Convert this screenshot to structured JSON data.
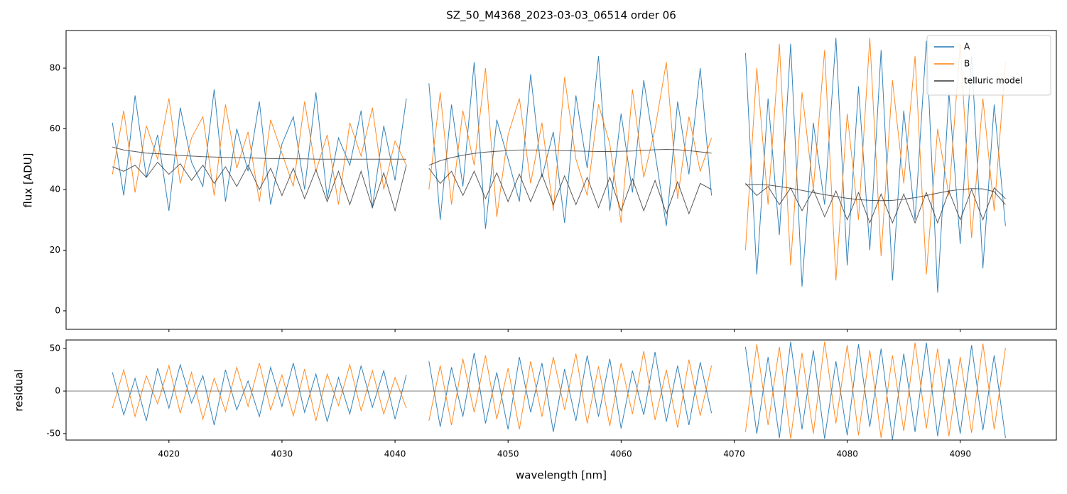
{
  "chart_data": [
    {
      "type": "line",
      "title": "SZ_50_M4368_2023-03-03_06514  order 06",
      "ylabel": "flux [ADU]",
      "xlim": [
        4010.9,
        4098.5
      ],
      "ylim": [
        -6.1,
        92.4
      ],
      "xticks": [
        4020,
        4030,
        4040,
        4050,
        4060,
        4070,
        4080,
        4090
      ],
      "show_xtick_labels": false,
      "yticks": [
        0,
        20,
        40,
        60,
        80
      ],
      "legend": "upper right",
      "x": [
        4015,
        4016,
        4017,
        4018,
        4019,
        4020,
        4021,
        4022,
        4023,
        4024,
        4025,
        4026,
        4027,
        4028,
        4029,
        4030,
        4031,
        4032,
        4033,
        4034,
        4035,
        4036,
        4037,
        4038,
        4039,
        4040,
        4041,
        4042,
        4043,
        4044,
        4045,
        4046,
        4047,
        4048,
        4049,
        4050,
        4051,
        4052,
        4053,
        4054,
        4055,
        4056,
        4057,
        4058,
        4059,
        4060,
        4061,
        4062,
        4063,
        4064,
        4065,
        4066,
        4067,
        4068,
        4069,
        4070,
        4071,
        4072,
        4073,
        4074,
        4075,
        4076,
        4077,
        4078,
        4079,
        4080,
        4081,
        4082,
        4083,
        4084,
        4085,
        4086,
        4087,
        4088,
        4089,
        4090,
        4091,
        4092,
        4093,
        4094
      ],
      "series": [
        {
          "name": "A",
          "color": "#1f77b4",
          "values": [
            62,
            38,
            71,
            44,
            58,
            33,
            67,
            49,
            41,
            73,
            36,
            60,
            46,
            69,
            35,
            55,
            64,
            40,
            72,
            37,
            57,
            48,
            66,
            34,
            61,
            43,
            70,
            null,
            75,
            30,
            68,
            41,
            82,
            27,
            63,
            50,
            36,
            78,
            44,
            59,
            29,
            71,
            47,
            84,
            33,
            65,
            39,
            76,
            52,
            28,
            69,
            45,
            80,
            38,
            null,
            null,
            85,
            12,
            70,
            25,
            88,
            8,
            62,
            35,
            90,
            15,
            74,
            20,
            86,
            10,
            66,
            30,
            89,
            6,
            72,
            22,
            84,
            14,
            68,
            28
          ]
        },
        {
          "name": "B",
          "color": "#ff7f0e",
          "values": [
            45,
            66,
            39,
            61,
            50,
            70,
            42,
            57,
            64,
            38,
            68,
            47,
            59,
            36,
            63,
            52,
            41,
            69,
            46,
            58,
            35,
            62,
            51,
            67,
            40,
            56,
            48,
            null,
            40,
            72,
            35,
            66,
            48,
            80,
            31,
            58,
            70,
            42,
            62,
            33,
            77,
            50,
            38,
            68,
            55,
            29,
            73,
            44,
            60,
            82,
            37,
            64,
            46,
            57,
            null,
            null,
            20,
            80,
            35,
            88,
            15,
            72,
            40,
            86,
            10,
            65,
            30,
            90,
            18,
            76,
            42,
            84,
            12,
            60,
            38,
            88,
            24,
            70,
            33,
            82
          ]
        },
        {
          "name": "telluric model",
          "color": "#333333",
          "values": [
            47.5,
            46,
            48,
            44,
            49,
            45,
            48.5,
            43,
            48,
            42,
            47.5,
            41,
            48,
            40,
            47,
            38,
            47,
            37,
            46.5,
            36,
            46,
            35,
            46,
            34,
            45.5,
            33,
            48,
            null,
            47,
            42,
            46,
            38,
            46,
            37,
            45.5,
            36,
            45,
            36,
            45,
            35,
            44.5,
            35,
            44,
            34,
            44,
            33,
            43.5,
            33,
            43,
            32,
            42.5,
            32,
            42,
            40,
            null,
            null,
            42,
            38,
            41,
            35,
            40.5,
            33,
            40,
            31,
            39.5,
            30,
            39,
            29,
            38.5,
            29,
            38.5,
            29,
            39,
            29,
            39.5,
            30,
            40,
            30,
            40.5,
            37
          ]
        },
        {
          "color": "#333333",
          "values": [
            54,
            53,
            52.5,
            52,
            51.8,
            51.5,
            51.2,
            51,
            50.8,
            50.7,
            50.6,
            50.5,
            50.4,
            50.3,
            50.2,
            50.2,
            50.1,
            50.1,
            50,
            50,
            50,
            50,
            50,
            50,
            50,
            50,
            50,
            null,
            48,
            49.5,
            50.5,
            51.3,
            51.9,
            52.3,
            52.6,
            52.8,
            53,
            53,
            53,
            52.9,
            52.8,
            52.7,
            52.6,
            52.5,
            52.5,
            52.6,
            52.7,
            52.9,
            53.1,
            53.2,
            53.1,
            52.8,
            52.4,
            52,
            null,
            null,
            41.5,
            41.7,
            41.5,
            41,
            40.4,
            39.7,
            39,
            38.3,
            37.7,
            37.1,
            36.7,
            36.4,
            36.3,
            36.4,
            36.8,
            37.3,
            38,
            38.8,
            39.5,
            40,
            40.3,
            40.2,
            39.3,
            35
          ]
        }
      ]
    },
    {
      "type": "line",
      "ylabel": "residual",
      "xlabel": "wavelength [nm]",
      "xlim": [
        4010.9,
        4098.5
      ],
      "ylim": [
        -57.6,
        60.1
      ],
      "xticks": [
        4020,
        4030,
        4040,
        4050,
        4060,
        4070,
        4080,
        4090
      ],
      "show_xtick_labels": true,
      "yticks": [
        -50,
        0,
        50
      ],
      "zero_line": 0,
      "x": [
        4015,
        4016,
        4017,
        4018,
        4019,
        4020,
        4021,
        4022,
        4023,
        4024,
        4025,
        4026,
        4027,
        4028,
        4029,
        4030,
        4031,
        4032,
        4033,
        4034,
        4035,
        4036,
        4037,
        4038,
        4039,
        4040,
        4041,
        4042,
        4043,
        4044,
        4045,
        4046,
        4047,
        4048,
        4049,
        4050,
        4051,
        4052,
        4053,
        4054,
        4055,
        4056,
        4057,
        4058,
        4059,
        4060,
        4061,
        4062,
        4063,
        4064,
        4065,
        4066,
        4067,
        4068,
        4069,
        4070,
        4071,
        4072,
        4073,
        4074,
        4075,
        4076,
        4077,
        4078,
        4079,
        4080,
        4081,
        4082,
        4083,
        4084,
        4085,
        4086,
        4087,
        4088,
        4089,
        4090,
        4091,
        4092,
        4093,
        4094
      ],
      "series": [
        {
          "color": "#1f77b4",
          "values": [
            22,
            -28,
            15,
            -35,
            27,
            -20,
            31,
            -14,
            18,
            -40,
            25,
            -22,
            12,
            -30,
            28,
            -18,
            33,
            -25,
            20,
            -36,
            16,
            -27,
            30,
            -19,
            24,
            -33,
            19,
            null,
            35,
            -42,
            28,
            -30,
            45,
            -38,
            22,
            -45,
            40,
            -25,
            33,
            -48,
            26,
            -35,
            42,
            -30,
            38,
            -44,
            24,
            -28,
            46,
            -36,
            30,
            -40,
            34,
            -26,
            null,
            null,
            52,
            -50,
            40,
            -55,
            58,
            -45,
            48,
            -56,
            35,
            -52,
            55,
            -42,
            50,
            -57,
            44,
            -48,
            57,
            -53,
            38,
            -50,
            54,
            -46,
            42,
            -55
          ]
        },
        {
          "color": "#ff7f0e",
          "values": [
            -20,
            25,
            -30,
            18,
            -15,
            30,
            -26,
            22,
            -33,
            15,
            -24,
            28,
            -18,
            33,
            -22,
            19,
            -29,
            26,
            -35,
            20,
            -17,
            31,
            -23,
            24,
            -27,
            16,
            -20,
            null,
            -35,
            30,
            -40,
            38,
            -25,
            42,
            -33,
            27,
            -45,
            35,
            -30,
            40,
            -22,
            44,
            -38,
            29,
            -41,
            33,
            -27,
            47,
            -34,
            25,
            -43,
            37,
            -29,
            30,
            null,
            null,
            -48,
            55,
            -40,
            52,
            -56,
            45,
            -50,
            58,
            -38,
            54,
            -52,
            48,
            -55,
            42,
            -47,
            57,
            -44,
            50,
            -53,
            40,
            -49,
            56,
            -45,
            51
          ]
        }
      ]
    }
  ]
}
